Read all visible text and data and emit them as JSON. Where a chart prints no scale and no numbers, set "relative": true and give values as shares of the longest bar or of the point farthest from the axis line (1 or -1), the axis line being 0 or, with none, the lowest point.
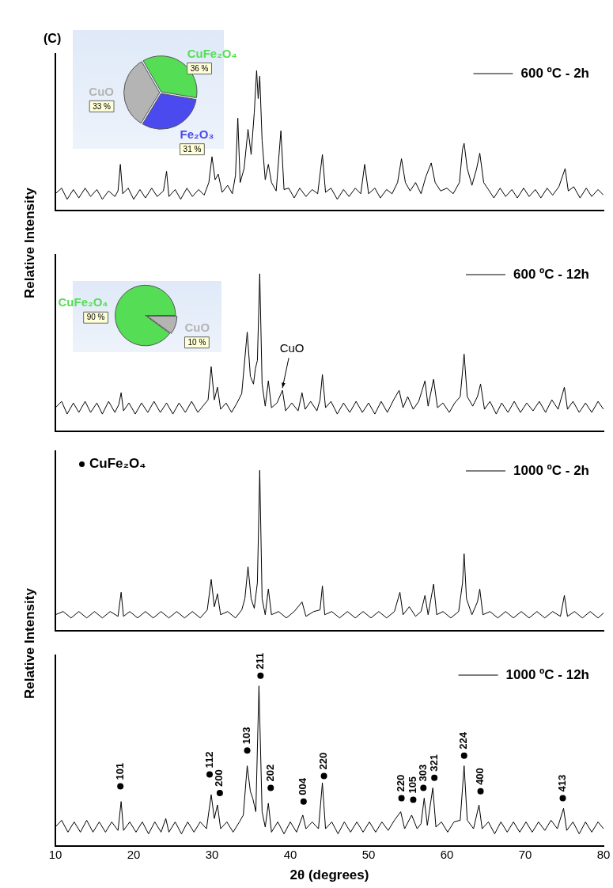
{
  "chart_data": [
    {
      "type": "line",
      "title": "(C)",
      "ylabel": "Relative Intensity",
      "relative": true,
      "xlim": [
        10,
        80
      ],
      "tick_labels": false,
      "legend": "top right",
      "series": [
        {
          "name": "600 ºC - 2h",
          "color": "#000000",
          "x": [
            10,
            10.8,
            11.5,
            12.3,
            13,
            13.8,
            14.5,
            15.3,
            16,
            16.8,
            17.6,
            18,
            18.3,
            18.6,
            19.3,
            20,
            20.8,
            21.5,
            22.3,
            23,
            23.8,
            24.2,
            24.5,
            25.3,
            26,
            26.8,
            27.5,
            28.3,
            29,
            29.6,
            30,
            30.4,
            30.8,
            31.3,
            32,
            32.6,
            33,
            33.3,
            33.6,
            34.1,
            34.6,
            35,
            35.4,
            35.7,
            35.9,
            36.1,
            36.4,
            36.8,
            37.2,
            37.6,
            38.2,
            38.8,
            39.2,
            39.8,
            40.5,
            41.2,
            42,
            42.8,
            43.5,
            44.1,
            44.5,
            45.2,
            46,
            46.8,
            47.5,
            48.3,
            49,
            49.5,
            50,
            50.8,
            51.5,
            52.3,
            53,
            53.7,
            54.2,
            54.7,
            55.3,
            56,
            56.7,
            57.3,
            58,
            58.5,
            59.2,
            60,
            60.8,
            61.6,
            62,
            62.2,
            62.6,
            63.2,
            63.8,
            64.2,
            64.7,
            65.3,
            66,
            66.8,
            67.5,
            68.3,
            69,
            69.8,
            70.5,
            71.3,
            72,
            72.8,
            73.5,
            74.3,
            75.1,
            75.5,
            76.2,
            77,
            77.8,
            78.5,
            79.3,
            80
          ],
          "values": [
            0.12,
            0.16,
            0.08,
            0.15,
            0.09,
            0.16,
            0.1,
            0.15,
            0.08,
            0.14,
            0.1,
            0.14,
            0.33,
            0.12,
            0.16,
            0.08,
            0.15,
            0.09,
            0.16,
            0.1,
            0.14,
            0.28,
            0.1,
            0.15,
            0.08,
            0.16,
            0.1,
            0.15,
            0.11,
            0.2,
            0.385,
            0.22,
            0.26,
            0.13,
            0.18,
            0.12,
            0.25,
            0.66,
            0.2,
            0.3,
            0.58,
            0.4,
            0.7,
            1.0,
            0.8,
            0.96,
            0.5,
            0.22,
            0.33,
            0.2,
            0.14,
            0.57,
            0.15,
            0.16,
            0.09,
            0.16,
            0.1,
            0.15,
            0.12,
            0.4,
            0.13,
            0.16,
            0.08,
            0.15,
            0.1,
            0.16,
            0.12,
            0.33,
            0.12,
            0.16,
            0.09,
            0.15,
            0.12,
            0.2,
            0.37,
            0.2,
            0.14,
            0.2,
            0.12,
            0.24,
            0.34,
            0.2,
            0.14,
            0.16,
            0.12,
            0.2,
            0.44,
            0.48,
            0.3,
            0.18,
            0.3,
            0.41,
            0.2,
            0.15,
            0.09,
            0.16,
            0.1,
            0.15,
            0.09,
            0.16,
            0.1,
            0.15,
            0.09,
            0.16,
            0.11,
            0.17,
            0.3,
            0.14,
            0.17,
            0.09,
            0.16,
            0.1,
            0.15,
            0.11
          ]
        }
      ]
    },
    {
      "type": "pie",
      "categories": [
        "CuFe₂O₄",
        "Fe₂O₃",
        "CuO"
      ],
      "values": [
        36,
        31,
        33
      ],
      "colors": [
        "#55dd55",
        "#4a4aee",
        "#b4b4b4"
      ],
      "value_labels": [
        "36 %",
        "31 %",
        "33 %"
      ]
    },
    {
      "type": "line",
      "relative": true,
      "xlim": [
        10,
        80
      ],
      "tick_labels": false,
      "legend": "top right",
      "annotations": [
        {
          "text": "CuO",
          "x": 39,
          "y": 0.26
        }
      ],
      "series": [
        {
          "name": "600 ºC - 12h",
          "color": "#000000",
          "x": [
            10,
            10.8,
            11.5,
            12.3,
            13,
            13.8,
            14.5,
            15.3,
            16,
            16.8,
            17.6,
            18.1,
            18.4,
            18.7,
            19.4,
            20.2,
            21,
            21.8,
            22.6,
            23.4,
            24.2,
            25,
            25.8,
            26.6,
            27.4,
            28.2,
            29,
            29.5,
            29.9,
            30.3,
            30.7,
            31.1,
            31.8,
            32.5,
            33.2,
            33.8,
            34.5,
            34.9,
            35.3,
            35.55,
            35.8,
            36.1,
            36.4,
            36.8,
            37.2,
            37.6,
            38.3,
            39,
            39.4,
            40.2,
            41,
            41.5,
            41.9,
            42.6,
            43.4,
            43.8,
            44.1,
            44.5,
            45.2,
            46,
            46.8,
            47.6,
            48.4,
            49.2,
            50,
            50.8,
            51.6,
            52.4,
            53.2,
            53.9,
            54.4,
            55,
            55.7,
            56.4,
            57.2,
            57.6,
            58.3,
            58.8,
            59.5,
            60.3,
            61,
            61.7,
            62.2,
            62.6,
            63.3,
            63.9,
            64.3,
            64.8,
            65.5,
            66.3,
            67,
            67.8,
            68.6,
            69.4,
            70.2,
            71,
            71.8,
            72.6,
            73.4,
            74.2,
            75,
            75.4,
            76.1,
            76.9,
            77.7,
            78.5,
            79.3,
            80
          ],
          "values": [
            0.15,
            0.19,
            0.11,
            0.18,
            0.12,
            0.19,
            0.12,
            0.18,
            0.11,
            0.19,
            0.12,
            0.17,
            0.245,
            0.13,
            0.18,
            0.11,
            0.18,
            0.12,
            0.19,
            0.12,
            0.18,
            0.11,
            0.18,
            0.12,
            0.19,
            0.12,
            0.17,
            0.2,
            0.41,
            0.2,
            0.28,
            0.14,
            0.18,
            0.12,
            0.18,
            0.24,
            0.63,
            0.35,
            0.3,
            0.4,
            0.45,
            1.0,
            0.3,
            0.16,
            0.32,
            0.15,
            0.18,
            0.26,
            0.13,
            0.18,
            0.13,
            0.245,
            0.14,
            0.19,
            0.13,
            0.2,
            0.36,
            0.15,
            0.19,
            0.11,
            0.18,
            0.12,
            0.19,
            0.12,
            0.18,
            0.11,
            0.19,
            0.12,
            0.2,
            0.26,
            0.15,
            0.22,
            0.14,
            0.19,
            0.32,
            0.16,
            0.33,
            0.15,
            0.18,
            0.12,
            0.18,
            0.22,
            0.49,
            0.22,
            0.16,
            0.22,
            0.3,
            0.14,
            0.19,
            0.11,
            0.18,
            0.12,
            0.19,
            0.12,
            0.18,
            0.13,
            0.19,
            0.12,
            0.2,
            0.14,
            0.28,
            0.14,
            0.19,
            0.12,
            0.18,
            0.12,
            0.19,
            0.14
          ]
        }
      ]
    },
    {
      "type": "pie",
      "categories": [
        "CuO",
        "CuFe₂O₄"
      ],
      "values": [
        10,
        90
      ],
      "colors": [
        "#b4b4b4",
        "#55dd55"
      ],
      "value_labels": [
        "10 %",
        "90 %"
      ]
    },
    {
      "type": "line",
      "ylabel": "Relative Intensity",
      "relative": true,
      "xlim": [
        10,
        80
      ],
      "tick_labels": false,
      "legend": "top right",
      "annotations": [
        "CuFe₂O₄"
      ],
      "series": [
        {
          "name": "1000 ºC - 2h",
          "color": "#000000",
          "x": [
            10,
            11,
            12,
            13,
            14,
            15,
            16,
            17,
            18,
            18.4,
            18.7,
            19.5,
            20.5,
            21.5,
            22.5,
            23.5,
            24.5,
            25.5,
            26.5,
            27.5,
            28.5,
            29.4,
            29.9,
            30.3,
            30.7,
            31.1,
            32,
            33,
            33.8,
            34.2,
            34.6,
            35,
            35.4,
            35.8,
            36.1,
            36.4,
            36.8,
            37.2,
            37.6,
            38.5,
            39.5,
            40.5,
            41.5,
            42,
            43,
            43.8,
            44.1,
            44.4,
            45.3,
            46.3,
            47.3,
            48.3,
            49.3,
            50.3,
            51.3,
            52.3,
            53.3,
            54,
            54.4,
            55.2,
            56,
            56.7,
            57.2,
            57.6,
            58.3,
            58.7,
            59.5,
            60.5,
            61.5,
            62,
            62.2,
            62.5,
            63.2,
            63.9,
            64.2,
            64.6,
            65.5,
            66.5,
            67.5,
            68.5,
            69.5,
            70.5,
            71.5,
            72.5,
            73.5,
            74.5,
            75,
            75.4,
            76.3,
            77.3,
            78.3,
            79.3,
            80
          ],
          "values": [
            0.1,
            0.12,
            0.08,
            0.12,
            0.08,
            0.12,
            0.08,
            0.12,
            0.09,
            0.24,
            0.09,
            0.12,
            0.08,
            0.12,
            0.08,
            0.12,
            0.08,
            0.12,
            0.08,
            0.12,
            0.08,
            0.13,
            0.32,
            0.15,
            0.23,
            0.1,
            0.12,
            0.08,
            0.13,
            0.2,
            0.4,
            0.2,
            0.14,
            0.3,
            1.0,
            0.2,
            0.1,
            0.26,
            0.1,
            0.12,
            0.08,
            0.12,
            0.18,
            0.09,
            0.12,
            0.13,
            0.28,
            0.1,
            0.12,
            0.08,
            0.12,
            0.08,
            0.12,
            0.08,
            0.12,
            0.08,
            0.12,
            0.24,
            0.1,
            0.15,
            0.09,
            0.12,
            0.22,
            0.1,
            0.29,
            0.1,
            0.12,
            0.08,
            0.12,
            0.3,
            0.48,
            0.2,
            0.1,
            0.18,
            0.26,
            0.1,
            0.12,
            0.08,
            0.12,
            0.08,
            0.12,
            0.08,
            0.12,
            0.08,
            0.12,
            0.09,
            0.22,
            0.09,
            0.12,
            0.08,
            0.12,
            0.08,
            0.11
          ]
        }
      ]
    },
    {
      "type": "line",
      "xlabel": "2θ (degrees)",
      "relative": true,
      "xlim": [
        10,
        80
      ],
      "xticks": [
        10,
        20,
        30,
        40,
        50,
        60,
        70,
        80
      ],
      "tick_labels": "x",
      "legend": "top right",
      "annotations": [
        {
          "text": "101",
          "x": 18.3,
          "y": 0.35
        },
        {
          "text": "112",
          "x": 29.7,
          "y": 0.42
        },
        {
          "text": "200",
          "x": 31.0,
          "y": 0.31
        },
        {
          "text": "103",
          "x": 34.5,
          "y": 0.56
        },
        {
          "text": "211",
          "x": 36.2,
          "y": 1.0
        },
        {
          "text": "202",
          "x": 37.5,
          "y": 0.34
        },
        {
          "text": "004",
          "x": 41.7,
          "y": 0.26
        },
        {
          "text": "220",
          "x": 44.3,
          "y": 0.41
        },
        {
          "text": "220",
          "x": 54.2,
          "y": 0.28
        },
        {
          "text": "105",
          "x": 55.7,
          "y": 0.27
        },
        {
          "text": "303",
          "x": 57.0,
          "y": 0.34
        },
        {
          "text": "321",
          "x": 58.4,
          "y": 0.4
        },
        {
          "text": "224",
          "x": 62.2,
          "y": 0.53
        },
        {
          "text": "400",
          "x": 64.3,
          "y": 0.32
        },
        {
          "text": "413",
          "x": 74.8,
          "y": 0.28
        }
      ],
      "series": [
        {
          "name": "1000 ºC - 12h",
          "color": "#000000",
          "x": [
            10,
            10.8,
            11.6,
            12.4,
            13.2,
            14,
            14.8,
            15.6,
            16.4,
            17.2,
            18,
            18.4,
            18.7,
            19.5,
            20.3,
            21.1,
            21.9,
            22.7,
            23.5,
            24.1,
            24.5,
            25.3,
            26.1,
            26.9,
            27.7,
            28.5,
            29.3,
            29.9,
            30.3,
            30.7,
            31.1,
            31.9,
            32.7,
            33.5,
            34,
            34.5,
            34.9,
            35.2,
            35.6,
            36,
            36.4,
            36.8,
            37.2,
            37.6,
            38.4,
            39.2,
            40,
            40.8,
            41.6,
            42,
            42.8,
            43.6,
            44.1,
            44.5,
            45.3,
            46.1,
            46.9,
            47.7,
            48.5,
            49.3,
            50.1,
            50.9,
            51.7,
            52.5,
            53.3,
            54.1,
            54.6,
            55.5,
            56.2,
            56.7,
            57.1,
            57.5,
            58.2,
            58.6,
            59.3,
            60.1,
            60.9,
            61.7,
            62.2,
            62.6,
            63.4,
            64.1,
            64.5,
            65.3,
            66.1,
            66.9,
            67.7,
            68.5,
            69.3,
            70.1,
            70.9,
            71.7,
            72.5,
            73.3,
            74.1,
            74.9,
            75.3,
            76.1,
            76.9,
            77.7,
            78.5,
            79.3,
            80
          ],
          "values": [
            0.11,
            0.15,
            0.08,
            0.14,
            0.08,
            0.15,
            0.08,
            0.14,
            0.08,
            0.14,
            0.09,
            0.26,
            0.09,
            0.14,
            0.08,
            0.14,
            0.07,
            0.14,
            0.08,
            0.16,
            0.08,
            0.14,
            0.07,
            0.14,
            0.08,
            0.14,
            0.1,
            0.3,
            0.16,
            0.24,
            0.1,
            0.14,
            0.08,
            0.14,
            0.18,
            0.47,
            0.32,
            0.28,
            0.2,
            0.94,
            0.2,
            0.11,
            0.25,
            0.08,
            0.14,
            0.07,
            0.14,
            0.08,
            0.18,
            0.1,
            0.14,
            0.1,
            0.37,
            0.1,
            0.14,
            0.07,
            0.14,
            0.08,
            0.14,
            0.08,
            0.14,
            0.08,
            0.14,
            0.09,
            0.15,
            0.2,
            0.1,
            0.18,
            0.1,
            0.13,
            0.28,
            0.12,
            0.34,
            0.11,
            0.14,
            0.08,
            0.14,
            0.15,
            0.47,
            0.15,
            0.1,
            0.24,
            0.1,
            0.14,
            0.07,
            0.14,
            0.08,
            0.14,
            0.08,
            0.14,
            0.08,
            0.14,
            0.09,
            0.15,
            0.1,
            0.22,
            0.09,
            0.14,
            0.07,
            0.14,
            0.08,
            0.14,
            0.1
          ]
        },
        {
          "type": "scatter",
          "color": "#000000",
          "marker": "circle",
          "x": [
            18.3,
            29.7,
            31.0,
            34.5,
            36.2,
            37.5,
            41.7,
            44.3,
            54.2,
            55.7,
            57.0,
            58.4,
            62.2,
            64.3,
            74.8
          ],
          "values": [
            0.35,
            0.42,
            0.31,
            0.56,
            1.0,
            0.34,
            0.26,
            0.41,
            0.28,
            0.27,
            0.34,
            0.4,
            0.53,
            0.32,
            0.28
          ]
        }
      ]
    }
  ]
}
